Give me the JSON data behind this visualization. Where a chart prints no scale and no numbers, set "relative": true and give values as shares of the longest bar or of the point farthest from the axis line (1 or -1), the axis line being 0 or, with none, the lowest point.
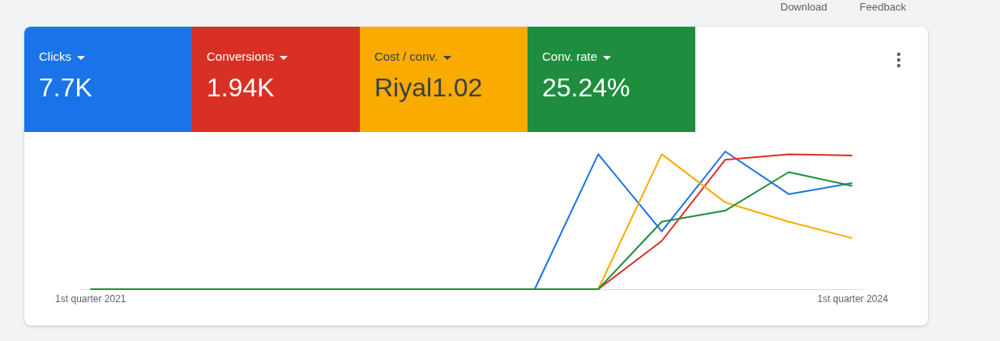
{
  "chart_data": [
    {
      "type": "other",
      "categories": [
        "Clicks",
        "Conversions",
        "Cost / conv.",
        "Conv. rate"
      ],
      "value_labels": [
        "7.7K",
        "1.94K",
        "Riyal1.02",
        "25.24%"
      ],
      "colors": [
        "#1a73e8",
        "#d93025",
        "#f9ab00",
        "#1e8e3e"
      ],
      "annotations": [
        "Download",
        "Feedback"
      ]
    },
    {
      "type": "line",
      "relative": true,
      "categories": [
        "1st quarter 2021",
        null,
        null,
        null,
        null,
        null,
        null,
        null,
        null,
        null,
        null,
        null,
        "1st quarter 2024"
      ],
      "series": [
        {
          "color": "#1a73e8",
          "values": [
            null,
            null,
            null,
            null,
            null,
            null,
            null,
            0,
            0.98,
            0.42,
            1,
            0.69,
            0.77
          ]
        },
        {
          "color": "#d93025",
          "values": [
            null,
            null,
            null,
            null,
            null,
            null,
            null,
            null,
            0,
            0.35,
            0.94,
            0.98,
            0.97
          ]
        },
        {
          "color": "#f9ab00",
          "values": [
            null,
            null,
            null,
            null,
            null,
            null,
            null,
            null,
            0,
            0.98,
            0.63,
            0.49,
            0.37
          ]
        },
        {
          "color": "#1e8e3e",
          "values": [
            0,
            0,
            0,
            0,
            0,
            0,
            0,
            0,
            0,
            0.49,
            0.57,
            0.85,
            0.75
          ]
        }
      ]
    }
  ]
}
